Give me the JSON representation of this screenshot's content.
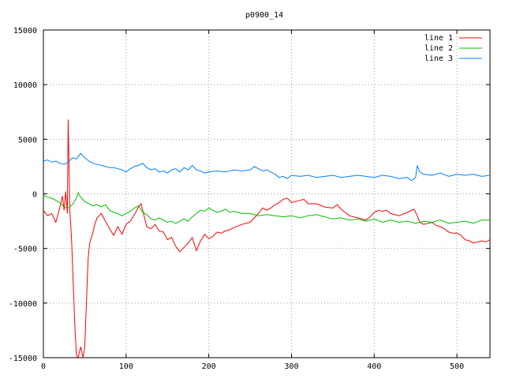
{
  "chart_data": {
    "type": "line",
    "title": "p0900_14",
    "xlabel": "",
    "ylabel": "",
    "xlim": [
      0,
      540
    ],
    "ylim": [
      -15000,
      15000
    ],
    "x_ticks": [
      0,
      100,
      200,
      300,
      400,
      500
    ],
    "y_ticks": [
      -15000,
      -10000,
      -5000,
      0,
      5000,
      10000,
      15000
    ],
    "x_tick_labels": [
      "0",
      "100",
      "200",
      "300",
      "400",
      "500"
    ],
    "y_tick_labels": [
      "-15000",
      "-10000",
      "-5000",
      "0",
      "5000",
      "10000",
      "15000"
    ],
    "grid": true,
    "legend_position": "top-right",
    "series": [
      {
        "name": "line 1",
        "color": "#ff0000",
        "points": [
          [
            0,
            -1500
          ],
          [
            5,
            -2000
          ],
          [
            10,
            -1800
          ],
          [
            15,
            -2600
          ],
          [
            20,
            -1200
          ],
          [
            23,
            -200
          ],
          [
            25,
            -1500
          ],
          [
            27,
            200
          ],
          [
            29,
            -1800
          ],
          [
            30,
            6800
          ],
          [
            32,
            -1500
          ],
          [
            34,
            -4000
          ],
          [
            36,
            -8000
          ],
          [
            38,
            -12000
          ],
          [
            40,
            -14800
          ],
          [
            42,
            -15000
          ],
          [
            45,
            -14000
          ],
          [
            48,
            -15000
          ],
          [
            50,
            -14000
          ],
          [
            52,
            -10000
          ],
          [
            54,
            -6000
          ],
          [
            56,
            -4500
          ],
          [
            58,
            -4000
          ],
          [
            60,
            -3500
          ],
          [
            62,
            -2800
          ],
          [
            65,
            -2200
          ],
          [
            70,
            -1800
          ],
          [
            75,
            -2500
          ],
          [
            80,
            -3200
          ],
          [
            85,
            -3800
          ],
          [
            90,
            -3000
          ],
          [
            95,
            -3700
          ],
          [
            100,
            -2800
          ],
          [
            105,
            -2500
          ],
          [
            110,
            -1900
          ],
          [
            115,
            -1200
          ],
          [
            118,
            -900
          ],
          [
            120,
            -1500
          ],
          [
            125,
            -3000
          ],
          [
            130,
            -3200
          ],
          [
            135,
            -2800
          ],
          [
            140,
            -3400
          ],
          [
            145,
            -3500
          ],
          [
            150,
            -4200
          ],
          [
            155,
            -4000
          ],
          [
            160,
            -4800
          ],
          [
            165,
            -5300
          ],
          [
            170,
            -4900
          ],
          [
            175,
            -4500
          ],
          [
            180,
            -4000
          ],
          [
            185,
            -5200
          ],
          [
            190,
            -4300
          ],
          [
            195,
            -3700
          ],
          [
            200,
            -4100
          ],
          [
            205,
            -3900
          ],
          [
            210,
            -3500
          ],
          [
            215,
            -3600
          ],
          [
            220,
            -3400
          ],
          [
            225,
            -3300
          ],
          [
            230,
            -3100
          ],
          [
            240,
            -2800
          ],
          [
            250,
            -2600
          ],
          [
            255,
            -2200
          ],
          [
            260,
            -1800
          ],
          [
            265,
            -1300
          ],
          [
            270,
            -1500
          ],
          [
            275,
            -1300
          ],
          [
            280,
            -1000
          ],
          [
            285,
            -800
          ],
          [
            290,
            -500
          ],
          [
            295,
            -400
          ],
          [
            300,
            -800
          ],
          [
            305,
            -700
          ],
          [
            310,
            -600
          ],
          [
            315,
            -500
          ],
          [
            320,
            -900
          ],
          [
            330,
            -900
          ],
          [
            340,
            -1200
          ],
          [
            350,
            -1300
          ],
          [
            355,
            -1000
          ],
          [
            360,
            -1400
          ],
          [
            370,
            -2000
          ],
          [
            380,
            -2200
          ],
          [
            390,
            -2400
          ],
          [
            395,
            -2100
          ],
          [
            400,
            -1700
          ],
          [
            405,
            -1500
          ],
          [
            410,
            -1600
          ],
          [
            415,
            -1500
          ],
          [
            420,
            -1800
          ],
          [
            430,
            -2000
          ],
          [
            440,
            -1700
          ],
          [
            448,
            -1400
          ],
          [
            452,
            -2000
          ],
          [
            455,
            -2600
          ],
          [
            460,
            -2800
          ],
          [
            470,
            -2600
          ],
          [
            475,
            -2900
          ],
          [
            480,
            -3000
          ],
          [
            485,
            -3200
          ],
          [
            490,
            -3500
          ],
          [
            495,
            -3600
          ],
          [
            500,
            -3600
          ],
          [
            505,
            -3800
          ],
          [
            510,
            -4200
          ],
          [
            515,
            -4300
          ],
          [
            520,
            -4500
          ],
          [
            530,
            -4300
          ],
          [
            535,
            -4400
          ],
          [
            540,
            -4200
          ]
        ]
      },
      {
        "name": "line 2",
        "color": "#00c000",
        "points": [
          [
            0,
            -100
          ],
          [
            5,
            -300
          ],
          [
            10,
            -400
          ],
          [
            15,
            -600
          ],
          [
            20,
            -800
          ],
          [
            25,
            -1200
          ],
          [
            30,
            -1300
          ],
          [
            35,
            -1000
          ],
          [
            40,
            -400
          ],
          [
            42,
            100
          ],
          [
            45,
            -300
          ],
          [
            50,
            -700
          ],
          [
            55,
            -900
          ],
          [
            60,
            -1100
          ],
          [
            65,
            -1000
          ],
          [
            70,
            -1200
          ],
          [
            75,
            -1000
          ],
          [
            80,
            -1500
          ],
          [
            85,
            -1700
          ],
          [
            90,
            -1800
          ],
          [
            95,
            -2000
          ],
          [
            100,
            -1800
          ],
          [
            105,
            -1600
          ],
          [
            110,
            -1300
          ],
          [
            115,
            -1100
          ],
          [
            120,
            -1700
          ],
          [
            125,
            -1900
          ],
          [
            130,
            -2300
          ],
          [
            135,
            -2400
          ],
          [
            140,
            -2200
          ],
          [
            145,
            -2400
          ],
          [
            150,
            -2600
          ],
          [
            155,
            -2500
          ],
          [
            160,
            -2700
          ],
          [
            165,
            -2500
          ],
          [
            170,
            -2300
          ],
          [
            175,
            -2500
          ],
          [
            180,
            -2100
          ],
          [
            185,
            -1800
          ],
          [
            190,
            -1500
          ],
          [
            195,
            -1600
          ],
          [
            200,
            -1300
          ],
          [
            205,
            -1500
          ],
          [
            210,
            -1700
          ],
          [
            215,
            -1600
          ],
          [
            220,
            -1400
          ],
          [
            225,
            -1700
          ],
          [
            230,
            -1600
          ],
          [
            240,
            -1800
          ],
          [
            250,
            -1800
          ],
          [
            260,
            -2000
          ],
          [
            270,
            -1900
          ],
          [
            280,
            -2000
          ],
          [
            290,
            -2100
          ],
          [
            300,
            -2000
          ],
          [
            310,
            -2200
          ],
          [
            320,
            -2000
          ],
          [
            330,
            -1900
          ],
          [
            340,
            -2100
          ],
          [
            350,
            -2300
          ],
          [
            360,
            -2200
          ],
          [
            370,
            -2400
          ],
          [
            380,
            -2300
          ],
          [
            390,
            -2500
          ],
          [
            400,
            -2300
          ],
          [
            410,
            -2600
          ],
          [
            420,
            -2400
          ],
          [
            430,
            -2600
          ],
          [
            440,
            -2500
          ],
          [
            450,
            -2700
          ],
          [
            460,
            -2500
          ],
          [
            470,
            -2600
          ],
          [
            480,
            -2400
          ],
          [
            490,
            -2700
          ],
          [
            500,
            -2600
          ],
          [
            510,
            -2500
          ],
          [
            520,
            -2700
          ],
          [
            530,
            -2400
          ],
          [
            540,
            -2400
          ]
        ]
      },
      {
        "name": "line 3",
        "color": "#0080ff",
        "points": [
          [
            0,
            3000
          ],
          [
            5,
            3100
          ],
          [
            10,
            2900
          ],
          [
            15,
            3000
          ],
          [
            20,
            2800
          ],
          [
            25,
            2700
          ],
          [
            30,
            2900
          ],
          [
            35,
            3300
          ],
          [
            40,
            3200
          ],
          [
            45,
            3700
          ],
          [
            50,
            3300
          ],
          [
            55,
            3000
          ],
          [
            60,
            2800
          ],
          [
            65,
            2700
          ],
          [
            70,
            2600
          ],
          [
            75,
            2500
          ],
          [
            80,
            2400
          ],
          [
            85,
            2400
          ],
          [
            90,
            2300
          ],
          [
            95,
            2200
          ],
          [
            100,
            2000
          ],
          [
            105,
            2300
          ],
          [
            110,
            2500
          ],
          [
            115,
            2600
          ],
          [
            120,
            2800
          ],
          [
            125,
            2400
          ],
          [
            130,
            2200
          ],
          [
            135,
            2300
          ],
          [
            140,
            2000
          ],
          [
            145,
            2100
          ],
          [
            150,
            1900
          ],
          [
            155,
            2200
          ],
          [
            160,
            2300
          ],
          [
            165,
            2000
          ],
          [
            170,
            2400
          ],
          [
            175,
            2200
          ],
          [
            180,
            2600
          ],
          [
            185,
            2200
          ],
          [
            190,
            2100
          ],
          [
            195,
            1900
          ],
          [
            200,
            2000
          ],
          [
            210,
            2100
          ],
          [
            220,
            2000
          ],
          [
            230,
            2200
          ],
          [
            240,
            2100
          ],
          [
            250,
            2200
          ],
          [
            255,
            2500
          ],
          [
            260,
            2300
          ],
          [
            265,
            2100
          ],
          [
            270,
            2200
          ],
          [
            280,
            1800
          ],
          [
            285,
            1500
          ],
          [
            290,
            1600
          ],
          [
            295,
            1400
          ],
          [
            300,
            1700
          ],
          [
            310,
            1600
          ],
          [
            320,
            1700
          ],
          [
            330,
            1500
          ],
          [
            340,
            1600
          ],
          [
            350,
            1700
          ],
          [
            360,
            1500
          ],
          [
            370,
            1600
          ],
          [
            380,
            1700
          ],
          [
            390,
            1600
          ],
          [
            400,
            1500
          ],
          [
            410,
            1700
          ],
          [
            420,
            1600
          ],
          [
            430,
            1400
          ],
          [
            440,
            1500
          ],
          [
            445,
            1200
          ],
          [
            450,
            1500
          ],
          [
            452,
            2600
          ],
          [
            455,
            2000
          ],
          [
            460,
            1800
          ],
          [
            470,
            1700
          ],
          [
            480,
            1900
          ],
          [
            490,
            1600
          ],
          [
            500,
            1800
          ],
          [
            510,
            1700
          ],
          [
            520,
            1800
          ],
          [
            530,
            1600
          ],
          [
            540,
            1700
          ]
        ]
      }
    ]
  }
}
